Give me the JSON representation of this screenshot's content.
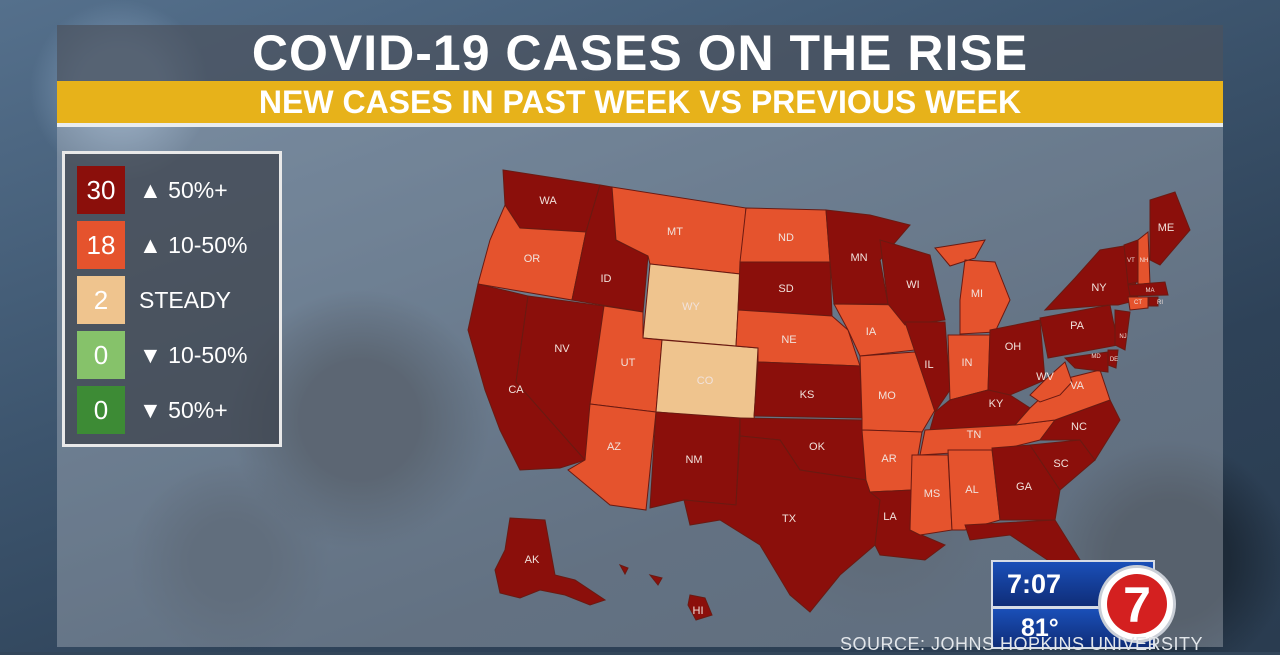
{
  "header": {
    "title": "COVID-19 CASES ON THE RISE",
    "subtitle": "NEW CASES IN PAST WEEK VS PREVIOUS WEEK"
  },
  "colors": {
    "rise_50_plus": "#8b0f0b",
    "rise_10_50": "#e5532d",
    "steady": "#efc48e",
    "fall_10_50": "#86c26a",
    "fall_50_plus": "#3d8b35"
  },
  "legend": [
    {
      "count": "30",
      "label": "▲ 50%+",
      "category": "rise_50_plus"
    },
    {
      "count": "18",
      "label": "▲ 10-50%",
      "category": "rise_10_50"
    },
    {
      "count": "2",
      "label": "STEADY",
      "category": "steady"
    },
    {
      "count": "0",
      "label": "▼ 10-50%",
      "category": "fall_10_50"
    },
    {
      "count": "0",
      "label": "▼ 50%+",
      "category": "fall_50_plus"
    }
  ],
  "states": {
    "WA": "rise_50_plus",
    "OR": "rise_10_50",
    "CA": "rise_50_plus",
    "NV": "rise_50_plus",
    "ID": "rise_50_plus",
    "MT": "rise_10_50",
    "WY": "steady",
    "UT": "rise_10_50",
    "CO": "steady",
    "AZ": "rise_10_50",
    "NM": "rise_50_plus",
    "ND": "rise_10_50",
    "SD": "rise_50_plus",
    "NE": "rise_10_50",
    "KS": "rise_50_plus",
    "OK": "rise_50_plus",
    "TX": "rise_50_plus",
    "MN": "rise_50_plus",
    "IA": "rise_10_50",
    "MO": "rise_10_50",
    "AR": "rise_10_50",
    "LA": "rise_50_plus",
    "WI": "rise_50_plus",
    "IL": "rise_50_plus",
    "MI": "rise_10_50",
    "IN": "rise_10_50",
    "OH": "rise_50_plus",
    "KY": "rise_50_plus",
    "TN": "rise_10_50",
    "MS": "rise_10_50",
    "AL": "rise_10_50",
    "GA": "rise_50_plus",
    "FL": "rise_50_plus",
    "SC": "rise_50_plus",
    "NC": "rise_50_plus",
    "VA": "rise_10_50",
    "WV": "rise_10_50",
    "PA": "rise_50_plus",
    "NY": "rise_50_plus",
    "VT": "rise_50_plus",
    "NH": "rise_10_50",
    "ME": "rise_50_plus",
    "MA": "rise_50_plus",
    "RI": "rise_50_plus",
    "CT": "rise_10_50",
    "NJ": "rise_50_plus",
    "DE": "rise_50_plus",
    "MD": "rise_50_plus",
    "AK": "rise_50_plus",
    "HI": "rise_50_plus"
  },
  "bug": {
    "time": "7:07",
    "temp": "81°",
    "logo": "7"
  },
  "source": "SOURCE: JOHNS HOPKINS UNIVERSITY"
}
